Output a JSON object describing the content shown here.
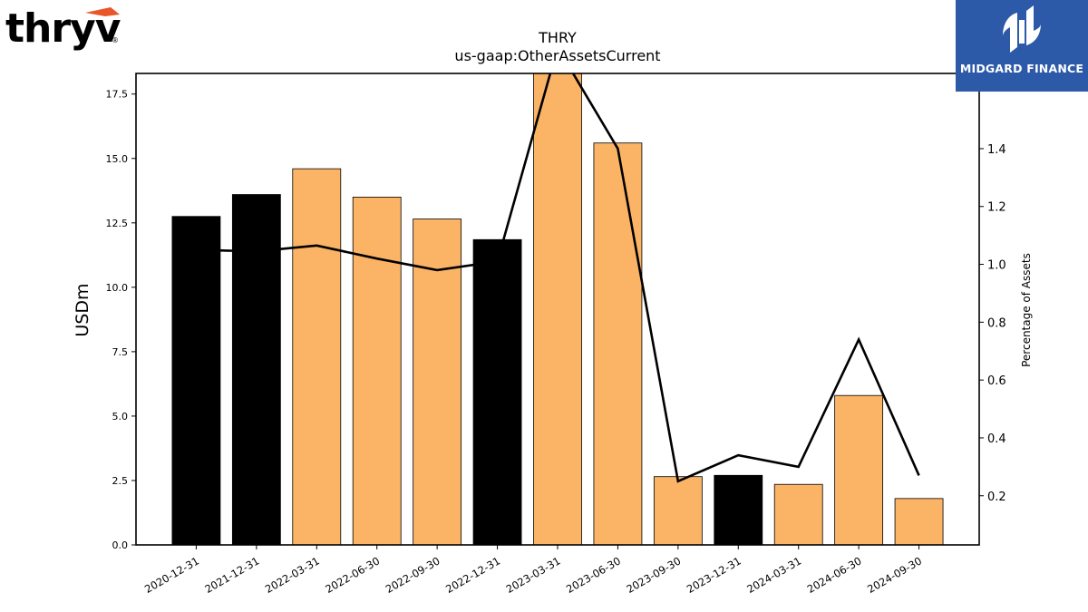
{
  "chart_data": {
    "type": "bar",
    "title": "THRY",
    "subtitle": "us-gaap:OtherAssetsCurrent",
    "ylabel": "USDm",
    "y2label": "Percentage of Assets",
    "categories": [
      "2020-12-31",
      "2021-12-31",
      "2022-03-31",
      "2022-06-30",
      "2022-09-30",
      "2022-12-31",
      "2023-03-31",
      "2023-06-30",
      "2023-09-30",
      "2023-12-31",
      "2024-03-31",
      "2024-06-30",
      "2024-09-30"
    ],
    "series": [
      {
        "values": [
          12.75,
          13.6,
          14.6,
          13.5,
          12.65,
          11.85,
          18.5,
          15.6,
          2.65,
          2.7,
          2.35,
          5.8,
          1.8
        ],
        "bar_colors": [
          "#000000",
          "#000000",
          "#fbb466",
          "#fbb466",
          "#fbb466",
          "#000000",
          "#fbb466",
          "#fbb466",
          "#fbb466",
          "#000000",
          "#fbb466",
          "#fbb466",
          "#fbb466"
        ]
      },
      {
        "axis": "right",
        "values": [
          1.05,
          1.045,
          1.065,
          1.02,
          0.98,
          1.01,
          1.75,
          1.4,
          0.25,
          0.34,
          0.3,
          0.74,
          0.27
        ]
      }
    ],
    "ylim": [
      0,
      18.3
    ],
    "y2lim": [
      0.03,
      1.66
    ],
    "yticks": [
      "0.0",
      "2.5",
      "5.0",
      "7.5",
      "10.0",
      "12.5",
      "15.0",
      "17.5"
    ],
    "y2ticks": [
      "0.2",
      "0.4",
      "0.6",
      "0.8",
      "1.0",
      "1.2",
      "1.4"
    ],
    "grid": false,
    "legend": "none"
  },
  "logos": {
    "left_text": "thryv",
    "left_mark": "®",
    "right_text": "MIDGARD FINANCE"
  }
}
